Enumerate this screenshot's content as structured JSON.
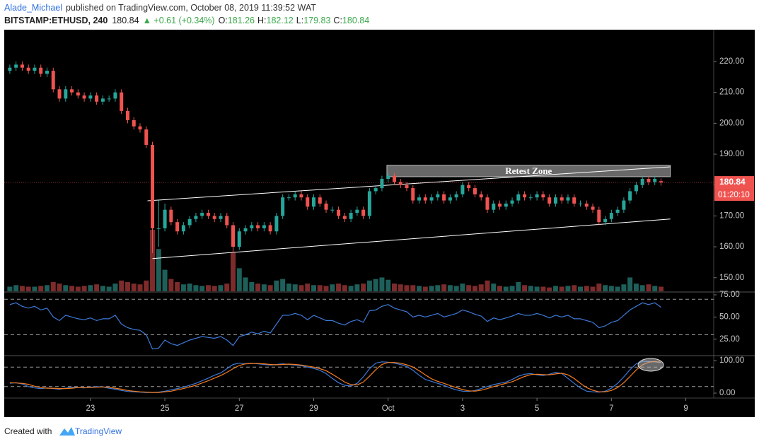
{
  "header": {
    "author": "Alade_Michael",
    "published": "published on TradingView.com, October 08, 2019 11:39:52 WAT",
    "symbol": "BITSTAMP:ETHUSD, 240",
    "price": "180.84",
    "change": "▲ +0.61 (+0.34%)",
    "ohlc": [
      {
        "label": "O:",
        "value": "181.26"
      },
      {
        "label": "H:",
        "value": "182.12"
      },
      {
        "label": "L:",
        "value": "179.83"
      },
      {
        "label": "C:",
        "value": "180.84"
      }
    ]
  },
  "footer": {
    "created": "Created with",
    "brand": "TradingView"
  },
  "chart_data": [
    {
      "type": "candlestick",
      "open": [
        217,
        218,
        219,
        218,
        217,
        218,
        216,
        217,
        211,
        208,
        211,
        210,
        209,
        208,
        209,
        207,
        208,
        208,
        210,
        204,
        201,
        199,
        198,
        193,
        166,
        166,
        172,
        168,
        165,
        167,
        169,
        170,
        171,
        170,
        169,
        170,
        167,
        160,
        165,
        166,
        167,
        166,
        167,
        165,
        170,
        176,
        176,
        177,
        176,
        173,
        176,
        174,
        172,
        172,
        170,
        169,
        171,
        172,
        170,
        178,
        179,
        182,
        183,
        181,
        180,
        179,
        175,
        176,
        175,
        176,
        177,
        175,
        176,
        177,
        180,
        179,
        177,
        176,
        172,
        174,
        173,
        174,
        175,
        177,
        176,
        176,
        177,
        176,
        174,
        176,
        175,
        176,
        174,
        174,
        173,
        172,
        168,
        169,
        171,
        172,
        175,
        178,
        180,
        182,
        181,
        181.26
      ],
      "high": [
        219,
        220,
        220,
        219,
        219,
        219,
        218,
        218,
        212,
        212,
        212,
        211,
        210,
        210,
        210,
        209,
        209,
        211,
        211,
        205,
        202,
        200,
        199,
        194,
        175,
        174,
        173,
        169,
        168,
        170,
        171,
        172,
        172,
        171,
        171,
        171,
        168,
        166,
        167,
        168,
        168,
        168,
        168,
        171,
        177,
        177,
        178,
        178,
        177,
        177,
        177,
        175,
        173,
        173,
        171,
        172,
        173,
        173,
        179,
        180,
        183,
        184,
        184,
        182,
        181,
        180,
        177,
        177,
        177,
        178,
        178,
        177,
        178,
        181,
        181,
        180,
        178,
        177,
        175,
        175,
        175,
        176,
        178,
        178,
        177,
        178,
        178,
        177,
        177,
        177,
        177,
        177,
        175,
        175,
        174,
        173,
        170,
        172,
        173,
        176,
        179,
        181,
        183,
        183,
        183,
        182.12
      ],
      "low": [
        216,
        217,
        217,
        216,
        216,
        215,
        215,
        210,
        207,
        207,
        209,
        208,
        207,
        207,
        206,
        206,
        207,
        207,
        203,
        200,
        198,
        197,
        192,
        158,
        160,
        165,
        167,
        164,
        164,
        166,
        168,
        169,
        169,
        168,
        168,
        166,
        158,
        159,
        164,
        165,
        165,
        165,
        164,
        164,
        169,
        175,
        175,
        175,
        172,
        172,
        173,
        171,
        171,
        169,
        168,
        168,
        170,
        169,
        169,
        177,
        178,
        181,
        180,
        179,
        178,
        174,
        174,
        174,
        174,
        175,
        174,
        174,
        175,
        176,
        178,
        176,
        175,
        171,
        171,
        172,
        172,
        173,
        174,
        175,
        175,
        175,
        175,
        173,
        173,
        174,
        174,
        173,
        173,
        172,
        171,
        167,
        167,
        168,
        170,
        171,
        174,
        177,
        179,
        180,
        180,
        179.83
      ],
      "close": [
        218,
        219,
        218,
        217,
        218,
        216,
        217,
        211,
        208,
        211,
        210,
        209,
        208,
        209,
        207,
        208,
        208,
        210,
        204,
        201,
        199,
        198,
        193,
        166,
        166,
        172,
        168,
        165,
        167,
        169,
        170,
        171,
        170,
        169,
        170,
        167,
        160,
        165,
        166,
        167,
        166,
        167,
        165,
        170,
        176,
        176,
        177,
        176,
        173,
        176,
        174,
        172,
        172,
        170,
        169,
        171,
        172,
        170,
        178,
        179,
        182,
        183,
        181,
        180,
        179,
        175,
        176,
        175,
        176,
        177,
        175,
        176,
        177,
        180,
        179,
        177,
        176,
        172,
        174,
        173,
        174,
        175,
        177,
        176,
        176,
        177,
        176,
        174,
        176,
        175,
        176,
        174,
        174,
        173,
        172,
        168,
        169,
        171,
        172,
        175,
        178,
        180,
        182,
        181,
        182,
        180.84
      ],
      "volume": [
        6,
        8,
        7,
        6,
        6,
        7,
        8,
        12,
        10,
        8,
        7,
        6,
        7,
        8,
        9,
        7,
        6,
        10,
        14,
        12,
        10,
        9,
        14,
        80,
        55,
        28,
        16,
        12,
        9,
        10,
        8,
        7,
        8,
        7,
        8,
        10,
        50,
        30,
        18,
        12,
        10,
        9,
        8,
        14,
        16,
        10,
        9,
        8,
        10,
        8,
        8,
        7,
        9,
        10,
        8,
        7,
        9,
        10,
        14,
        16,
        18,
        15,
        10,
        9,
        8,
        8,
        7,
        6,
        7,
        8,
        9,
        8,
        7,
        10,
        8,
        7,
        9,
        14,
        10,
        7,
        6,
        7,
        12,
        8,
        7,
        6,
        6,
        5,
        7,
        6,
        7,
        8,
        6,
        7,
        6,
        10,
        8,
        7,
        6,
        9,
        18,
        10,
        8,
        9,
        7,
        6
      ],
      "volume_lim": [
        0,
        92
      ],
      "up_color": "#26a69a",
      "down_color": "#ef5350",
      "up_volume_color": "#1e5f5a",
      "down_volume_color": "#7d2b2b",
      "xlim": [
        -0.9,
        113.5
      ],
      "xticks": [
        {
          "value": 13,
          "label": "23"
        },
        {
          "value": 25,
          "label": "25"
        },
        {
          "value": 37,
          "label": "27"
        },
        {
          "value": 49,
          "label": "29"
        },
        {
          "value": 61,
          "label": "Oct"
        },
        {
          "value": 73,
          "label": "3"
        },
        {
          "value": 85,
          "label": "5"
        },
        {
          "value": 97,
          "label": "7"
        },
        {
          "value": 109,
          "label": "9"
        }
      ],
      "ylim": [
        145.6,
        230.3
      ],
      "yticks": [
        {
          "value": 150,
          "label": "150.00"
        },
        {
          "value": 160,
          "label": "160.00"
        },
        {
          "value": 170,
          "label": "170.00"
        },
        {
          "value": 180,
          "label": "180.00"
        },
        {
          "value": 190,
          "label": "190.00"
        },
        {
          "value": 200,
          "label": "200.00"
        },
        {
          "value": 210,
          "label": "210.00"
        },
        {
          "value": 220,
          "label": "220.00"
        }
      ],
      "lines": [
        {
          "x": [
            22.2,
            106.5
          ],
          "y": [
            174.9,
            185.9
          ],
          "color": "#ffffff"
        },
        {
          "x": [
            23,
            106.5
          ],
          "y": [
            156.2,
            169.0
          ],
          "color": "#ffffff"
        }
      ],
      "zone": {
        "label": "Retest Zone",
        "x": [
          60.8,
          106.5
        ],
        "y": [
          182.7,
          186.4
        ],
        "color": "#7a7a7a"
      },
      "last_price": 180.84,
      "countdown": "01:20:10",
      "last_color": "#ef5350"
    },
    {
      "type": "line",
      "values": [
        64,
        66,
        62,
        60,
        62,
        58,
        60,
        50,
        46,
        52,
        50,
        48,
        47,
        49,
        46,
        48,
        48,
        52,
        42,
        38,
        36,
        35,
        30,
        14,
        15,
        24,
        20,
        18,
        21,
        24,
        26,
        28,
        27,
        26,
        28,
        24,
        18,
        28,
        30,
        33,
        31,
        34,
        32,
        42,
        52,
        52,
        54,
        52,
        47,
        52,
        49,
        46,
        46,
        43,
        41,
        45,
        47,
        44,
        57,
        58,
        62,
        64,
        60,
        58,
        56,
        50,
        52,
        50,
        52,
        54,
        50,
        52,
        54,
        58,
        56,
        53,
        51,
        45,
        49,
        47,
        49,
        51,
        54,
        52,
        52,
        54,
        52,
        49,
        52,
        50,
        52,
        48,
        48,
        46,
        44,
        38,
        40,
        44,
        46,
        52,
        58,
        62,
        66,
        64,
        66,
        61
      ],
      "color": "#3d7ad8",
      "ylim": [
        7.3,
        77.4
      ],
      "yticks": [
        {
          "value": 25,
          "label": "25.00"
        },
        {
          "value": 50,
          "label": "50.00"
        },
        {
          "value": 75,
          "label": "75.00"
        }
      ],
      "levels": [
        30,
        70
      ]
    },
    {
      "type": "line",
      "series": [
        {
          "color": "#3d7ad8",
          "values": [
            30,
            32,
            28,
            20,
            16,
            14,
            16,
            14,
            12,
            15,
            18,
            17,
            16,
            18,
            20,
            19,
            15,
            12,
            8,
            5,
            4,
            3,
            2,
            2,
            3,
            6,
            10,
            14,
            18,
            24,
            30,
            38,
            46,
            55,
            62,
            75,
            88,
            92,
            90,
            92,
            90,
            88,
            86,
            88,
            90,
            88,
            86,
            84,
            80,
            76,
            70,
            60,
            45,
            32,
            24,
            22,
            30,
            50,
            75,
            92,
            96,
            95,
            92,
            88,
            82,
            70,
            55,
            42,
            36,
            30,
            24,
            16,
            10,
            6,
            5,
            8,
            14,
            20,
            26,
            30,
            34,
            42,
            52,
            58,
            60,
            56,
            54,
            58,
            64,
            60,
            45,
            30,
            16,
            6,
            4,
            3,
            6,
            15,
            30,
            50,
            72,
            90,
            98,
            97,
            96,
            93
          ]
        },
        {
          "color": "#f57c1f",
          "values": [
            32,
            31,
            30,
            27,
            21,
            17,
            15,
            15,
            14,
            14,
            15,
            17,
            17,
            17,
            18,
            19,
            18,
            15,
            12,
            8,
            6,
            4,
            3,
            2,
            2,
            4,
            6,
            10,
            14,
            19,
            24,
            31,
            38,
            46,
            54,
            64,
            75,
            85,
            90,
            91,
            91,
            90,
            88,
            87,
            88,
            89,
            88,
            86,
            83,
            80,
            75,
            69,
            58,
            46,
            34,
            26,
            25,
            34,
            52,
            72,
            88,
            94,
            94,
            92,
            87,
            80,
            69,
            56,
            44,
            36,
            30,
            23,
            17,
            11,
            7,
            6,
            9,
            14,
            20,
            25,
            30,
            35,
            43,
            51,
            57,
            58,
            57,
            56,
            59,
            61,
            56,
            45,
            30,
            17,
            9,
            4,
            4,
            8,
            17,
            32,
            51,
            71,
            87,
            95,
            97,
            95
          ]
        }
      ],
      "ylim": [
        -13,
        113
      ],
      "yticks": [
        {
          "value": 0,
          "label": "0.00"
        },
        {
          "value": 100,
          "label": "100.00"
        }
      ],
      "levels": [
        20,
        80
      ]
    }
  ]
}
